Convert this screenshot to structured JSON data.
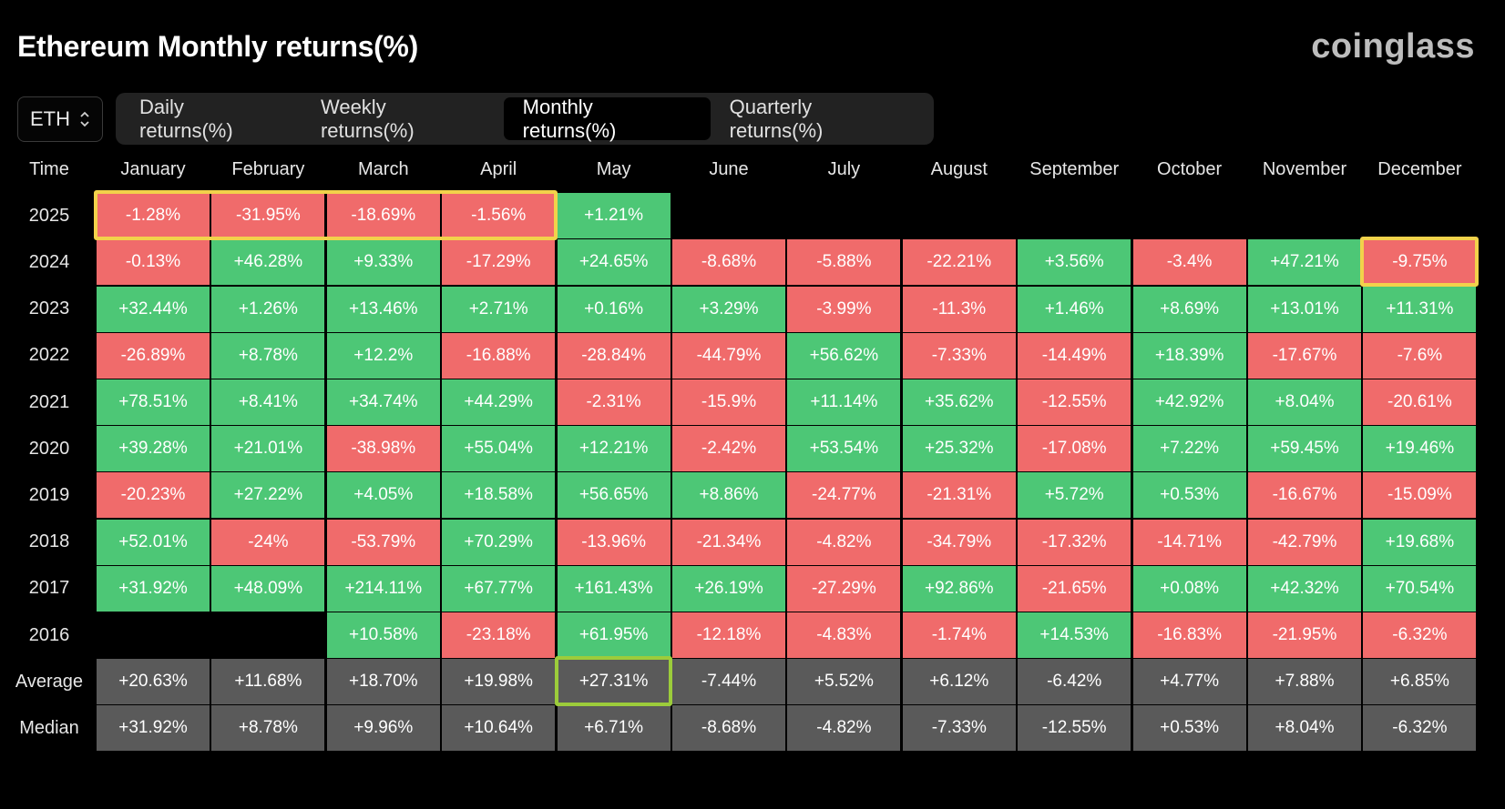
{
  "title": "Ethereum Monthly returns(%)",
  "brand": "coinglass",
  "coin_select": {
    "value": "ETH",
    "icon": "chevron-up-down-icon"
  },
  "tabs": [
    {
      "label": "Daily returns(%)",
      "active": false
    },
    {
      "label": "Weekly returns(%)",
      "active": false
    },
    {
      "label": "Monthly returns(%)",
      "active": true
    },
    {
      "label": "Quarterly returns(%)",
      "active": false
    }
  ],
  "colors": {
    "positive": "#4dc776",
    "negative": "#f06b6b",
    "stat": "#5a5a5a",
    "highlight_yellow": "#f2d24b",
    "highlight_green": "#9ccc3b"
  },
  "table": {
    "time_header": "Time",
    "months": [
      "January",
      "February",
      "March",
      "April",
      "May",
      "June",
      "July",
      "August",
      "September",
      "October",
      "November",
      "December"
    ],
    "rows": [
      {
        "label": "2025",
        "values": [
          "-1.28%",
          "-31.95%",
          "-18.69%",
          "-1.56%",
          "+1.21%",
          "",
          "",
          "",
          "",
          "",
          "",
          ""
        ]
      },
      {
        "label": "2024",
        "values": [
          "-0.13%",
          "+46.28%",
          "+9.33%",
          "-17.29%",
          "+24.65%",
          "-8.68%",
          "-5.88%",
          "-22.21%",
          "+3.56%",
          "-3.4%",
          "+47.21%",
          "-9.75%"
        ]
      },
      {
        "label": "2023",
        "values": [
          "+32.44%",
          "+1.26%",
          "+13.46%",
          "+2.71%",
          "+0.16%",
          "+3.29%",
          "-3.99%",
          "-11.3%",
          "+1.46%",
          "+8.69%",
          "+13.01%",
          "+11.31%"
        ]
      },
      {
        "label": "2022",
        "values": [
          "-26.89%",
          "+8.78%",
          "+12.2%",
          "-16.88%",
          "-28.84%",
          "-44.79%",
          "+56.62%",
          "-7.33%",
          "-14.49%",
          "+18.39%",
          "-17.67%",
          "-7.6%"
        ]
      },
      {
        "label": "2021",
        "values": [
          "+78.51%",
          "+8.41%",
          "+34.74%",
          "+44.29%",
          "-2.31%",
          "-15.9%",
          "+11.14%",
          "+35.62%",
          "-12.55%",
          "+42.92%",
          "+8.04%",
          "-20.61%"
        ]
      },
      {
        "label": "2020",
        "values": [
          "+39.28%",
          "+21.01%",
          "-38.98%",
          "+55.04%",
          "+12.21%",
          "-2.42%",
          "+53.54%",
          "+25.32%",
          "-17.08%",
          "+7.22%",
          "+59.45%",
          "+19.46%"
        ]
      },
      {
        "label": "2019",
        "values": [
          "-20.23%",
          "+27.22%",
          "+4.05%",
          "+18.58%",
          "+56.65%",
          "+8.86%",
          "-24.77%",
          "-21.31%",
          "+5.72%",
          "+0.53%",
          "-16.67%",
          "-15.09%"
        ]
      },
      {
        "label": "2018",
        "values": [
          "+52.01%",
          "-24%",
          "-53.79%",
          "+70.29%",
          "-13.96%",
          "-21.34%",
          "-4.82%",
          "-34.79%",
          "-17.32%",
          "-14.71%",
          "-42.79%",
          "+19.68%"
        ]
      },
      {
        "label": "2017",
        "values": [
          "+31.92%",
          "+48.09%",
          "+214.11%",
          "+67.77%",
          "+161.43%",
          "+26.19%",
          "-27.29%",
          "+92.86%",
          "-21.65%",
          "+0.08%",
          "+42.32%",
          "+70.54%"
        ]
      },
      {
        "label": "2016",
        "values": [
          "",
          "",
          "+10.58%",
          "-23.18%",
          "+61.95%",
          "-12.18%",
          "-4.83%",
          "-1.74%",
          "+14.53%",
          "-16.83%",
          "-21.95%",
          "-6.32%"
        ]
      }
    ],
    "stats": [
      {
        "label": "Average",
        "values": [
          "+20.63%",
          "+11.68%",
          "+18.70%",
          "+19.98%",
          "+27.31%",
          "-7.44%",
          "+5.52%",
          "+6.12%",
          "-6.42%",
          "+4.77%",
          "+7.88%",
          "+6.85%"
        ]
      },
      {
        "label": "Median",
        "values": [
          "+31.92%",
          "+8.78%",
          "+9.96%",
          "+10.64%",
          "+6.71%",
          "-8.68%",
          "-4.82%",
          "-7.33%",
          "-12.55%",
          "+0.53%",
          "+8.04%",
          "-6.32%"
        ]
      }
    ],
    "highlights": [
      {
        "kind": "yellow",
        "row": 0,
        "col_start": 0,
        "col_end": 3
      },
      {
        "kind": "yellow",
        "row": 1,
        "col_start": 11,
        "col_end": 11
      },
      {
        "kind": "green",
        "row": 10,
        "col_start": 4,
        "col_end": 4
      }
    ]
  }
}
